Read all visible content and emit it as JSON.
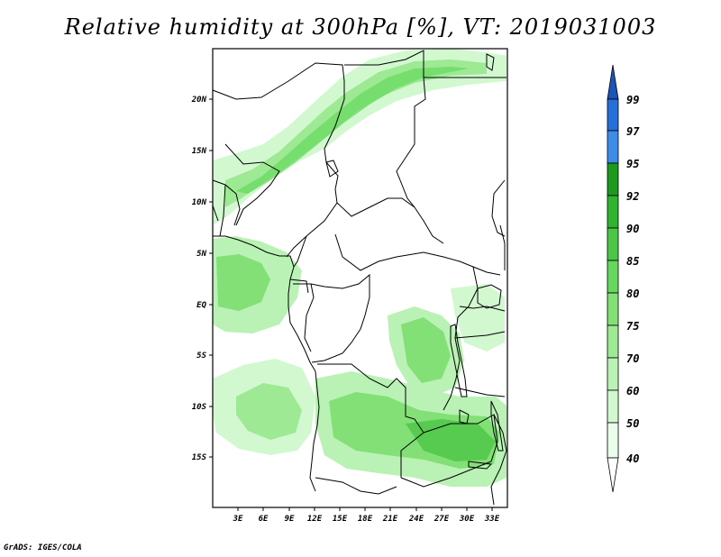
{
  "title": "Relative humidity at 300hPa [%], VT: 2019031003",
  "credit": "GrADS: IGES/COLA",
  "colors": {
    "ge40": "#eafdea",
    "ge50": "#d2f8d0",
    "ge60": "#b9f2b4",
    "ge70": "#9de994",
    "ge75": "#82e076",
    "ge80": "#65d85d",
    "ge85": "#4cc646",
    "ge90": "#2fb42f",
    "ge92": "#1c9a1c",
    "ge95": "#3c8ce8",
    "ge97": "#2470d8",
    "ge99": "#1a55b8",
    "border": "#000000"
  },
  "map": {
    "lon_ticks": [
      "3E",
      "6E",
      "9E",
      "12E",
      "15E",
      "18E",
      "21E",
      "24E",
      "27E",
      "30E",
      "33E"
    ],
    "lat_ticks": [
      "20N",
      "15N",
      "10N",
      "5N",
      "EQ",
      "5S",
      "10S",
      "15S"
    ]
  },
  "colorbar": {
    "levels": [
      "99",
      "97",
      "95",
      "92",
      "90",
      "85",
      "80",
      "75",
      "70",
      "60",
      "50",
      "40"
    ]
  }
}
